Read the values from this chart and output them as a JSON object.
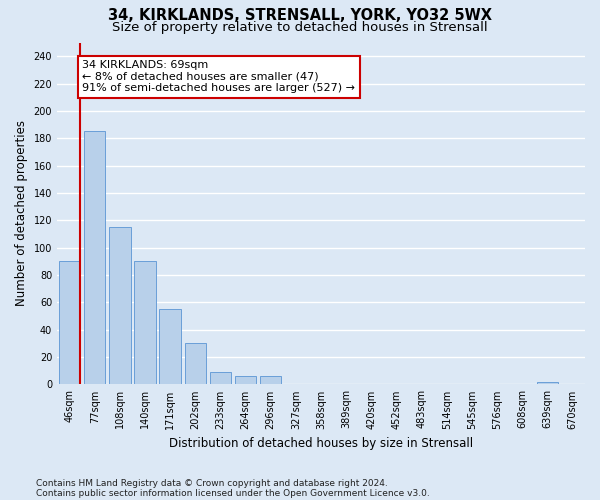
{
  "title1": "34, KIRKLANDS, STRENSALL, YORK, YO32 5WX",
  "title2": "Size of property relative to detached houses in Strensall",
  "xlabel": "Distribution of detached houses by size in Strensall",
  "ylabel": "Number of detached properties",
  "categories": [
    "46sqm",
    "77sqm",
    "108sqm",
    "140sqm",
    "171sqm",
    "202sqm",
    "233sqm",
    "264sqm",
    "296sqm",
    "327sqm",
    "358sqm",
    "389sqm",
    "420sqm",
    "452sqm",
    "483sqm",
    "514sqm",
    "545sqm",
    "576sqm",
    "608sqm",
    "639sqm",
    "670sqm"
  ],
  "values": [
    90,
    185,
    115,
    90,
    55,
    30,
    9,
    6,
    6,
    0,
    0,
    0,
    0,
    0,
    0,
    0,
    0,
    0,
    0,
    2,
    0
  ],
  "bar_color": "#b8d0ea",
  "bar_edge_color": "#6a9fd8",
  "figure_color": "#dce8f5",
  "background_color": "#dce8f5",
  "grid_color": "#ffffff",
  "annotation_line1": "34 KIRKLANDS: 69sqm",
  "annotation_line2": "← 8% of detached houses are smaller (47)",
  "annotation_line3": "91% of semi-detached houses are larger (527) →",
  "annotation_box_color": "#ffffff",
  "annotation_box_edge": "#cc0000",
  "red_line_color": "#cc0000",
  "ylim": [
    0,
    250
  ],
  "yticks": [
    0,
    20,
    40,
    60,
    80,
    100,
    120,
    140,
    160,
    180,
    200,
    220,
    240
  ],
  "footnote1": "Contains HM Land Registry data © Crown copyright and database right 2024.",
  "footnote2": "Contains public sector information licensed under the Open Government Licence v3.0.",
  "title1_fontsize": 10.5,
  "title2_fontsize": 9.5,
  "tick_fontsize": 7,
  "ylabel_fontsize": 8.5,
  "xlabel_fontsize": 8.5,
  "annot_fontsize": 8,
  "footnote_fontsize": 6.5
}
